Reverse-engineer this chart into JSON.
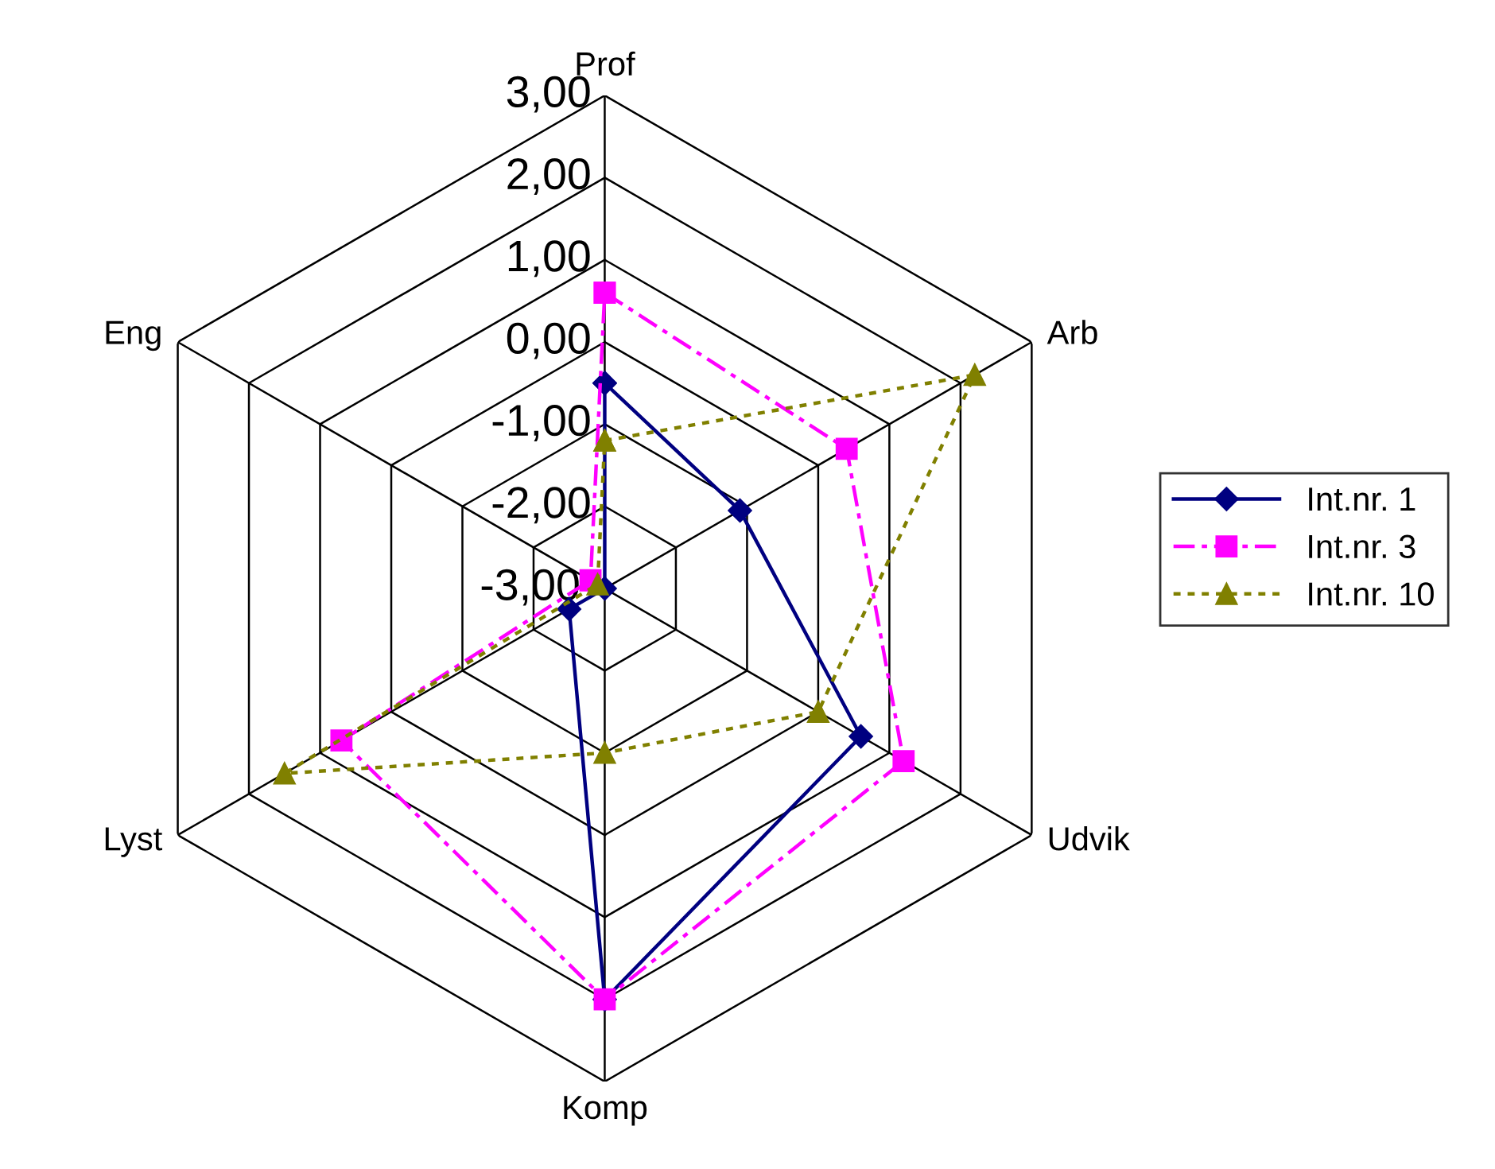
{
  "chart_data": {
    "type": "radar",
    "categories": [
      "Prof",
      "Arb",
      "Udvik",
      "Komp",
      "Lyst",
      "Eng"
    ],
    "ylim": [
      -3,
      3
    ],
    "yticks": [
      {
        "value": -3,
        "label": "-3,00"
      },
      {
        "value": -2,
        "label": "-2,00"
      },
      {
        "value": -1,
        "label": "-1,00"
      },
      {
        "value": 0,
        "label": "0,00"
      },
      {
        "value": 1,
        "label": "1,00"
      },
      {
        "value": 2,
        "label": "2,00"
      },
      {
        "value": 3,
        "label": "3,00"
      }
    ],
    "grid": true,
    "legend": "right",
    "series": [
      {
        "name": "Int.nr. 1",
        "color": "#000080",
        "marker": "diamond",
        "line_style": "solid",
        "values": [
          -0.5,
          -1.1,
          0.6,
          2.0,
          -2.5,
          -3.0
        ]
      },
      {
        "name": "Int.nr. 3",
        "color": "#ff00ff",
        "marker": "square",
        "line_style": "dashed",
        "values": [
          0.6,
          0.4,
          1.2,
          2.0,
          0.7,
          -2.8
        ]
      },
      {
        "name": "Int.nr. 10",
        "color": "#808000",
        "marker": "triangle",
        "line_style": "dotted",
        "values": [
          -1.2,
          2.2,
          0.0,
          -1.0,
          1.5,
          -2.9
        ]
      }
    ]
  }
}
